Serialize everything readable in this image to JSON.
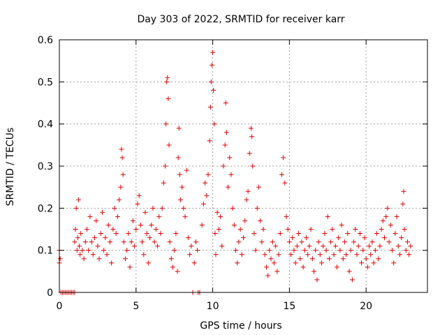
{
  "chart_data": {
    "type": "scatter",
    "title": "Day 303 of 2022, SRMTID for receiver karr",
    "xlabel": "GPS time / hours",
    "ylabel": "SRMTID / TECUs",
    "xlim": [
      0,
      24
    ],
    "ylim": [
      0,
      0.6
    ],
    "xticks": [
      0,
      5,
      10,
      15,
      20
    ],
    "yticks": [
      0,
      0.1,
      0.2,
      0.3,
      0.4,
      0.5,
      0.6
    ],
    "xtick_labels": [
      "0",
      "5",
      "10",
      "15",
      "20"
    ],
    "ytick_labels": [
      "0",
      "0.1",
      "0.2",
      "0.3",
      "0.4",
      "0.5",
      "0.6"
    ],
    "grid": true,
    "marker": "+",
    "color": "#e00000",
    "series": [
      {
        "name": "SRMTID",
        "points": [
          [
            0.0,
            0.1
          ],
          [
            0.0,
            0.07
          ],
          [
            0.05,
            0.08
          ],
          [
            0.1,
            0.0
          ],
          [
            0.2,
            0.0
          ],
          [
            0.3,
            0.0
          ],
          [
            0.4,
            0.0
          ],
          [
            0.5,
            0.0
          ],
          [
            0.6,
            0.0
          ],
          [
            0.7,
            0.0
          ],
          [
            0.8,
            0.0
          ],
          [
            0.9,
            0.0
          ],
          [
            1.0,
            0.0
          ],
          [
            1.0,
            0.12
          ],
          [
            1.05,
            0.15
          ],
          [
            1.1,
            0.2
          ],
          [
            1.15,
            0.1
          ],
          [
            1.2,
            0.13
          ],
          [
            1.25,
            0.22
          ],
          [
            1.3,
            0.11
          ],
          [
            1.35,
            0.09
          ],
          [
            1.4,
            0.14
          ],
          [
            1.5,
            0.1
          ],
          [
            1.6,
            0.08
          ],
          [
            1.7,
            0.12
          ],
          [
            1.8,
            0.15
          ],
          [
            1.9,
            0.1
          ],
          [
            2.0,
            0.18
          ],
          [
            2.1,
            0.12
          ],
          [
            2.2,
            0.09
          ],
          [
            2.3,
            0.13
          ],
          [
            2.4,
            0.17
          ],
          [
            2.5,
            0.11
          ],
          [
            2.6,
            0.08
          ],
          [
            2.7,
            0.14
          ],
          [
            2.8,
            0.19
          ],
          [
            2.9,
            0.1
          ],
          [
            3.0,
            0.13
          ],
          [
            3.1,
            0.09
          ],
          [
            3.2,
            0.16
          ],
          [
            3.3,
            0.12
          ],
          [
            3.4,
            0.07
          ],
          [
            3.5,
            0.15
          ],
          [
            3.6,
            0.2
          ],
          [
            3.7,
            0.14
          ],
          [
            3.8,
            0.18
          ],
          [
            3.9,
            0.22
          ],
          [
            4.0,
            0.25
          ],
          [
            4.05,
            0.34
          ],
          [
            4.1,
            0.32
          ],
          [
            4.15,
            0.28
          ],
          [
            4.2,
            0.12
          ],
          [
            4.3,
            0.08
          ],
          [
            4.4,
            0.1
          ],
          [
            4.5,
            0.14
          ],
          [
            4.6,
            0.06
          ],
          [
            4.7,
            0.12
          ],
          [
            4.8,
            0.17
          ],
          [
            4.9,
            0.11
          ],
          [
            5.0,
            0.15
          ],
          [
            5.1,
            0.21
          ],
          [
            5.2,
            0.23
          ],
          [
            5.3,
            0.16
          ],
          [
            5.4,
            0.12
          ],
          [
            5.5,
            0.09
          ],
          [
            5.6,
            0.19
          ],
          [
            5.7,
            0.14
          ],
          [
            5.8,
            0.07
          ],
          [
            5.9,
            0.13
          ],
          [
            6.0,
            0.16
          ],
          [
            6.1,
            0.2
          ],
          [
            6.2,
            0.12
          ],
          [
            6.3,
            0.15
          ],
          [
            6.4,
            0.11
          ],
          [
            6.5,
            0.18
          ],
          [
            6.6,
            0.14
          ],
          [
            6.7,
            0.2
          ],
          [
            6.8,
            0.26
          ],
          [
            6.9,
            0.3
          ],
          [
            6.95,
            0.4
          ],
          [
            7.0,
            0.5
          ],
          [
            7.05,
            0.51
          ],
          [
            7.1,
            0.46
          ],
          [
            7.15,
            0.35
          ],
          [
            7.2,
            0.12
          ],
          [
            7.3,
            0.08
          ],
          [
            7.4,
            0.06
          ],
          [
            7.5,
            0.1
          ],
          [
            7.6,
            0.14
          ],
          [
            7.7,
            0.05
          ],
          [
            7.75,
            0.32
          ],
          [
            7.8,
            0.39
          ],
          [
            7.85,
            0.28
          ],
          [
            7.9,
            0.22
          ],
          [
            8.0,
            0.25
          ],
          [
            8.1,
            0.2
          ],
          [
            8.2,
            0.18
          ],
          [
            8.3,
            0.29
          ],
          [
            8.4,
            0.13
          ],
          [
            8.5,
            0.09
          ],
          [
            8.6,
            0.11
          ],
          [
            8.7,
            0.0
          ],
          [
            8.8,
            0.07
          ],
          [
            8.9,
            0.12
          ],
          [
            9.0,
            0.1
          ],
          [
            9.05,
            0.0
          ],
          [
            9.15,
            0.0
          ],
          [
            9.3,
            0.16
          ],
          [
            9.4,
            0.21
          ],
          [
            9.5,
            0.26
          ],
          [
            9.6,
            0.23
          ],
          [
            9.7,
            0.28
          ],
          [
            9.8,
            0.36
          ],
          [
            9.85,
            0.44
          ],
          [
            9.9,
            0.5
          ],
          [
            9.95,
            0.54
          ],
          [
            10.0,
            0.57
          ],
          [
            10.05,
            0.48
          ],
          [
            10.1,
            0.4
          ],
          [
            10.15,
            0.14
          ],
          [
            10.2,
            0.09
          ],
          [
            10.3,
            0.19
          ],
          [
            10.4,
            0.15
          ],
          [
            10.5,
            0.18
          ],
          [
            10.6,
            0.11
          ],
          [
            10.7,
            0.3
          ],
          [
            10.8,
            0.35
          ],
          [
            10.85,
            0.45
          ],
          [
            10.9,
            0.38
          ],
          [
            11.0,
            0.25
          ],
          [
            11.1,
            0.32
          ],
          [
            11.2,
            0.28
          ],
          [
            11.3,
            0.2
          ],
          [
            11.4,
            0.16
          ],
          [
            11.5,
            0.1
          ],
          [
            11.6,
            0.07
          ],
          [
            11.7,
            0.12
          ],
          [
            11.8,
            0.15
          ],
          [
            11.9,
            0.09
          ],
          [
            12.0,
            0.13
          ],
          [
            12.1,
            0.17
          ],
          [
            12.2,
            0.22
          ],
          [
            12.3,
            0.24
          ],
          [
            12.4,
            0.33
          ],
          [
            12.5,
            0.39
          ],
          [
            12.55,
            0.37
          ],
          [
            12.6,
            0.3
          ],
          [
            12.7,
            0.14
          ],
          [
            12.8,
            0.1
          ],
          [
            12.9,
            0.2
          ],
          [
            13.0,
            0.25
          ],
          [
            13.1,
            0.17
          ],
          [
            13.2,
            0.12
          ],
          [
            13.3,
            0.15
          ],
          [
            13.4,
            0.09
          ],
          [
            13.5,
            0.06
          ],
          [
            13.6,
            0.04
          ],
          [
            13.7,
            0.1
          ],
          [
            13.8,
            0.08
          ],
          [
            13.9,
            0.12
          ],
          [
            14.0,
            0.07
          ],
          [
            14.1,
            0.11
          ],
          [
            14.2,
            0.05
          ],
          [
            14.3,
            0.09
          ],
          [
            14.4,
            0.14
          ],
          [
            14.5,
            0.28
          ],
          [
            14.6,
            0.32
          ],
          [
            14.7,
            0.26
          ],
          [
            14.8,
            0.18
          ],
          [
            14.9,
            0.15
          ],
          [
            15.0,
            0.12
          ],
          [
            15.1,
            0.09
          ],
          [
            15.2,
            0.13
          ],
          [
            15.3,
            0.1
          ],
          [
            15.4,
            0.07
          ],
          [
            15.5,
            0.11
          ],
          [
            15.6,
            0.14
          ],
          [
            15.7,
            0.08
          ],
          [
            15.8,
            0.12
          ],
          [
            15.9,
            0.06
          ],
          [
            16.0,
            0.1
          ],
          [
            16.1,
            0.13
          ],
          [
            16.2,
            0.09
          ],
          [
            16.3,
            0.11
          ],
          [
            16.4,
            0.15
          ],
          [
            16.5,
            0.08
          ],
          [
            16.6,
            0.05
          ],
          [
            16.7,
            0.1
          ],
          [
            16.8,
            0.03
          ],
          [
            16.9,
            0.12
          ],
          [
            17.0,
            0.09
          ],
          [
            17.1,
            0.07
          ],
          [
            17.2,
            0.11
          ],
          [
            17.3,
            0.14
          ],
          [
            17.4,
            0.1
          ],
          [
            17.5,
            0.18
          ],
          [
            17.6,
            0.08
          ],
          [
            17.7,
            0.12
          ],
          [
            17.8,
            0.15
          ],
          [
            17.9,
            0.09
          ],
          [
            18.0,
            0.11
          ],
          [
            18.1,
            0.06
          ],
          [
            18.2,
            0.13
          ],
          [
            18.3,
            0.1
          ],
          [
            18.4,
            0.16
          ],
          [
            18.5,
            0.08
          ],
          [
            18.6,
            0.12
          ],
          [
            18.7,
            0.09
          ],
          [
            18.8,
            0.14
          ],
          [
            18.9,
            0.05
          ],
          [
            19.0,
            0.1
          ],
          [
            19.1,
            0.03
          ],
          [
            19.2,
            0.12
          ],
          [
            19.3,
            0.15
          ],
          [
            19.4,
            0.09
          ],
          [
            19.5,
            0.11
          ],
          [
            19.6,
            0.14
          ],
          [
            19.7,
            0.07
          ],
          [
            19.8,
            0.1
          ],
          [
            19.9,
            0.13
          ],
          [
            20.0,
            0.08
          ],
          [
            20.1,
            0.06
          ],
          [
            20.2,
            0.11
          ],
          [
            20.3,
            0.09
          ],
          [
            20.4,
            0.12
          ],
          [
            20.5,
            0.07
          ],
          [
            20.6,
            0.1
          ],
          [
            20.7,
            0.14
          ],
          [
            20.8,
            0.08
          ],
          [
            20.9,
            0.11
          ],
          [
            21.0,
            0.15
          ],
          [
            21.1,
            0.17
          ],
          [
            21.2,
            0.13
          ],
          [
            21.3,
            0.18
          ],
          [
            21.4,
            0.2
          ],
          [
            21.5,
            0.12
          ],
          [
            21.6,
            0.16
          ],
          [
            21.7,
            0.1
          ],
          [
            21.8,
            0.07
          ],
          [
            21.9,
            0.14
          ],
          [
            22.0,
            0.18
          ],
          [
            22.1,
            0.11
          ],
          [
            22.2,
            0.09
          ],
          [
            22.3,
            0.13
          ],
          [
            22.4,
            0.21
          ],
          [
            22.45,
            0.24
          ],
          [
            22.5,
            0.15
          ],
          [
            22.6,
            0.1
          ],
          [
            22.7,
            0.12
          ],
          [
            22.8,
            0.09
          ],
          [
            22.9,
            0.11
          ]
        ]
      }
    ]
  }
}
